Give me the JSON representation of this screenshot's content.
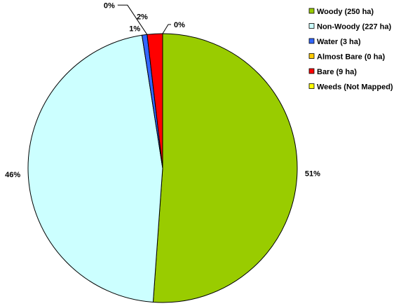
{
  "chart_data": {
    "type": "pie",
    "title": "",
    "legend_position": "top-right",
    "slices": [
      {
        "name": "Woody (250 ha)",
        "value": 250,
        "label": "51%",
        "color": "#99CC00"
      },
      {
        "name": "Non-Woody (227 ha)",
        "value": 227,
        "label": "46%",
        "color": "#CCFFFF"
      },
      {
        "name": "Water (3 ha)",
        "value": 3,
        "label": "1%",
        "color": "#3366FF"
      },
      {
        "name": "Almost Bare (0 ha)",
        "value": 0,
        "label": "0%",
        "color": "#FFCC00"
      },
      {
        "name": "Bare (9 ha)",
        "value": 9,
        "label": "2%",
        "color": "#FF0000"
      },
      {
        "name": "Weeds (Not Mapped)",
        "value": 0,
        "label": "0%",
        "color": "#FFFF00"
      }
    ]
  }
}
